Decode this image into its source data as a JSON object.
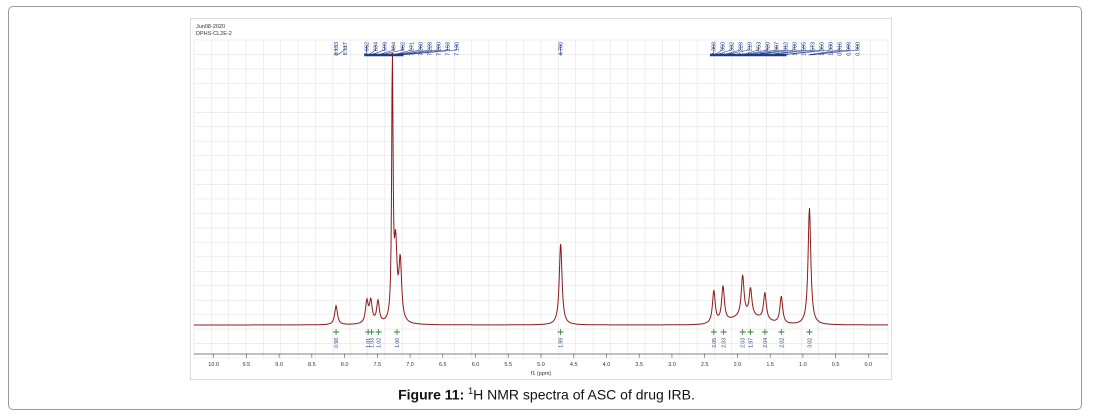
{
  "figure": {
    "label": "Figure 11:",
    "sup": "1",
    "text": "H NMR spectra of ASC of drug IRB."
  },
  "plot_meta": {
    "date": "Jun08-2020",
    "solvent": "DPHS-CL2E-2"
  },
  "colors": {
    "spectrum": "#8b1a1a",
    "peak_labels": "#1f3a8a",
    "integrals": "#2e7d32",
    "grid": "#e3e3e3"
  },
  "chart_data": {
    "type": "line",
    "xlabel": "f1 (ppm)",
    "xlim": [
      10.3,
      -0.3
    ],
    "x_reversed": true,
    "x_ticks": [
      "10.0",
      "9.5",
      "9.0",
      "8.5",
      "8.0",
      "7.5",
      "7.0",
      "6.5",
      "6.0",
      "5.5",
      "5.0",
      "4.5",
      "4.0",
      "3.5",
      "3.0",
      "2.5",
      "2.0",
      "1.5",
      "1.0",
      "0.5",
      "0.0"
    ],
    "series": [
      {
        "peaks": [
          {
            "ppm": 8.13,
            "height": 0.07
          },
          {
            "ppm": 7.66,
            "height": 0.08
          },
          {
            "ppm": 7.6,
            "height": 0.08
          },
          {
            "ppm": 7.49,
            "height": 0.08
          },
          {
            "ppm": 7.27,
            "height": 1.0
          },
          {
            "ppm": 7.22,
            "height": 0.27
          },
          {
            "ppm": 7.15,
            "height": 0.22
          },
          {
            "ppm": 4.7,
            "height": 0.3
          },
          {
            "ppm": 2.36,
            "height": 0.12
          },
          {
            "ppm": 2.22,
            "height": 0.13
          },
          {
            "ppm": 1.92,
            "height": 0.15
          },
          {
            "ppm": 1.8,
            "height": 0.1
          },
          {
            "ppm": 1.58,
            "height": 0.1
          },
          {
            "ppm": 1.33,
            "height": 0.1
          },
          {
            "ppm": 0.9,
            "height": 0.43
          }
        ]
      }
    ],
    "peak_labels": [
      "8.133",
      "8.117",
      "7.662",
      "7.634",
      "7.598",
      "7.494",
      "7.462",
      "7.271",
      "7.260",
      "7.228",
      "7.200",
      "7.158",
      "7.130",
      "4.700",
      "2.368",
      "2.350",
      "2.332",
      "2.228",
      "2.210",
      "1.953",
      "1.920",
      "1.887",
      "1.812",
      "1.780",
      "1.595",
      "1.573",
      "1.350",
      "1.330",
      "0.916",
      "0.898",
      "0.880"
    ],
    "integrals": [
      {
        "ppm": 8.13,
        "value": "0.98"
      },
      {
        "ppm": 7.64,
        "value": "1.01"
      },
      {
        "ppm": 7.59,
        "value": "1.03"
      },
      {
        "ppm": 7.48,
        "value": "1.02"
      },
      {
        "ppm": 7.2,
        "value": "1.00"
      },
      {
        "ppm": 4.7,
        "value": "1.99"
      },
      {
        "ppm": 2.36,
        "value": "2.05"
      },
      {
        "ppm": 2.21,
        "value": "2.03"
      },
      {
        "ppm": 1.92,
        "value": "2.03"
      },
      {
        "ppm": 1.8,
        "value": "1.97"
      },
      {
        "ppm": 1.58,
        "value": "2.04"
      },
      {
        "ppm": 1.33,
        "value": "2.02"
      },
      {
        "ppm": 0.9,
        "value": "3.02"
      }
    ]
  }
}
